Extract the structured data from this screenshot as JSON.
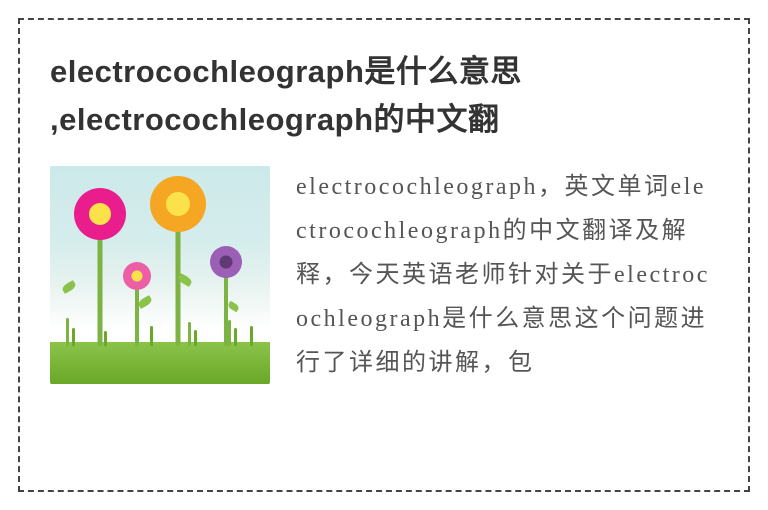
{
  "title_line1": "electrocochleograph是什么意思",
  "title_line2": ",electrocochleograph的中文翻",
  "paragraph": "electrocochleograph，英文单词electrocochleograph的中文翻译及解释，今天英语老师针对关于electrocochleograph是什么意思这个问题进行了详细的讲解，包",
  "colors": {
    "border": "#444444",
    "title": "#333333",
    "body": "#555555",
    "sky": "#cce9e9",
    "grass": "#8bc34a",
    "grass_dark": "#6aa828",
    "flower_pink": "#e91e8c",
    "flower_pink_light": "#ec5fa6",
    "flower_orange": "#f5a623",
    "flower_violet": "#9b5fb5",
    "flower_yellow": "#fce24a"
  }
}
